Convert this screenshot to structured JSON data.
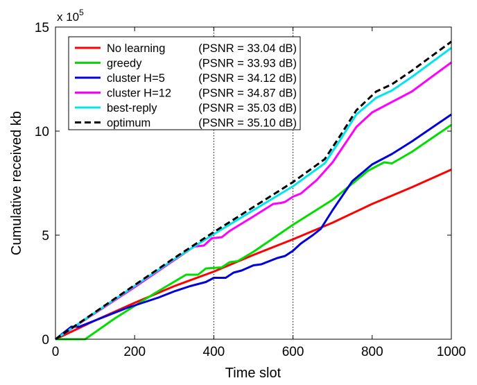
{
  "chart_data": {
    "type": "line",
    "xlabel": "Time slot",
    "ylabel": "Cumulative received kb",
    "y_multiplier": {
      "base": "x 10",
      "exponent": "5"
    },
    "xlim": [
      0,
      1000
    ],
    "ylim": [
      0,
      15
    ],
    "xticks": [
      0,
      200,
      400,
      600,
      800,
      1000
    ],
    "xtick_labels": [
      "0",
      "200",
      "400",
      "600",
      "800",
      "1000"
    ],
    "yticks": [
      0,
      5,
      10,
      15
    ],
    "ytick_labels": [
      "0",
      "5",
      "10",
      "15"
    ],
    "grid": false,
    "legend_position": "top-left",
    "reference_lines_x": [
      400,
      600
    ],
    "series": [
      {
        "name": "No learning",
        "psnr": "(PSNR = 33.04 dB)",
        "color": "#ff0000",
        "dash": false,
        "x": [
          0,
          100,
          200,
          300,
          400,
          500,
          600,
          700,
          800,
          900,
          1000
        ],
        "y": [
          0,
          0.9,
          1.75,
          2.55,
          3.25,
          4.05,
          4.8,
          5.6,
          6.5,
          7.3,
          8.15
        ]
      },
      {
        "name": "greedy",
        "psnr": "(PSNR = 33.93 dB)",
        "color": "#00dd00",
        "dash": false,
        "x": [
          0,
          75,
          150,
          250,
          330,
          360,
          380,
          420,
          440,
          460,
          500,
          600,
          700,
          790,
          830,
          850,
          900,
          1000
        ],
        "y": [
          0,
          0,
          1.0,
          2.2,
          3.1,
          3.1,
          3.4,
          3.45,
          3.7,
          3.75,
          4.2,
          5.5,
          6.7,
          8.1,
          8.5,
          8.45,
          9.0,
          10.3
        ]
      },
      {
        "name": "cluster H=5",
        "psnr": "(PSNR = 34.12 dB)",
        "color": "#0000dd",
        "dash": false,
        "x": [
          0,
          40,
          60,
          100,
          140,
          180,
          220,
          260,
          300,
          340,
          380,
          400,
          430,
          450,
          470,
          500,
          520,
          560,
          580,
          600,
          620,
          650,
          670,
          700,
          750,
          800,
          850,
          900,
          1000
        ],
        "y": [
          0,
          0.6,
          0.6,
          0.9,
          1.2,
          1.5,
          1.75,
          2.0,
          2.3,
          2.55,
          2.75,
          2.95,
          2.95,
          3.2,
          3.3,
          3.55,
          3.6,
          3.9,
          4.0,
          4.25,
          4.6,
          5.0,
          5.3,
          6.2,
          7.6,
          8.4,
          8.9,
          9.5,
          10.8
        ]
      },
      {
        "name": "cluster H=12",
        "psnr": "(PSNR = 34.87 dB)",
        "color": "#ff00ff",
        "dash": false,
        "x": [
          0,
          100,
          200,
          300,
          350,
          375,
          395,
          420,
          440,
          500,
          550,
          570,
          580,
          600,
          620,
          660,
          700,
          760,
          800,
          850,
          900,
          1000
        ],
        "y": [
          0,
          1.25,
          2.5,
          3.8,
          4.45,
          4.5,
          4.85,
          4.9,
          5.2,
          5.9,
          6.5,
          6.55,
          6.6,
          6.85,
          7.0,
          7.65,
          8.5,
          10.2,
          10.9,
          11.4,
          11.9,
          13.3
        ]
      },
      {
        "name": "best-reply",
        "psnr": "(PSNR = 35.03 dB)",
        "color": "#00e5ee",
        "dash": false,
        "x": [
          0,
          100,
          200,
          300,
          400,
          500,
          600,
          680,
          720,
          760,
          810,
          850,
          900,
          1000
        ],
        "y": [
          0,
          1.28,
          2.56,
          3.84,
          5.05,
          6.2,
          7.35,
          8.45,
          9.6,
          10.8,
          11.6,
          11.95,
          12.6,
          14.0
        ]
      },
      {
        "name": "optimum",
        "psnr": "(PSNR = 35.10 dB)",
        "color": "#000000",
        "dash": true,
        "x": [
          0,
          100,
          200,
          300,
          400,
          500,
          600,
          680,
          720,
          760,
          810,
          850,
          900,
          1000
        ],
        "y": [
          0,
          1.3,
          2.6,
          3.9,
          5.15,
          6.35,
          7.55,
          8.65,
          9.8,
          11.0,
          11.9,
          12.25,
          12.9,
          14.3
        ]
      }
    ]
  }
}
